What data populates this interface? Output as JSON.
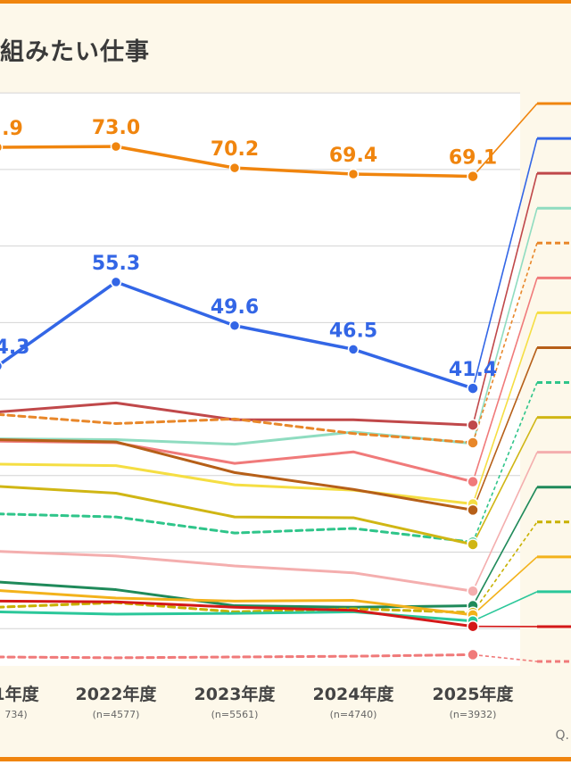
{
  "title": "組みたい仕事",
  "note": "Q.",
  "chart_data": {
    "type": "line",
    "categories": [
      "1年度",
      "2022年度",
      "2023年度",
      "2024年度",
      "2025年度"
    ],
    "sample_sizes": [
      "734)",
      "(n=4577)",
      "(n=5561)",
      "(n=4740)",
      "(n=3932)"
    ],
    "ylim": [
      0,
      85
    ],
    "grid": true,
    "legend": "right",
    "series": [
      {
        "color": "#f0850e",
        "dash": false,
        "values": [
          72.9,
          73.0,
          70.2,
          69.4,
          69.1
        ],
        "labels": [
          ".9",
          "73.0",
          "70.2",
          "69.4",
          "69.1"
        ]
      },
      {
        "color": "#3366e6",
        "dash": false,
        "values": [
          44.3,
          55.3,
          49.6,
          46.5,
          41.4
        ],
        "labels": [
          "4.3",
          "55.3",
          "49.6",
          "46.5",
          "41.4"
        ]
      },
      {
        "color": "#c0484a",
        "dash": false,
        "values": [
          38.3,
          39.5,
          37.3,
          37.3,
          36.6
        ]
      },
      {
        "color": "#8fdcc0",
        "dash": false,
        "values": [
          34.8,
          34.7,
          34.1,
          35.7,
          34.2
        ]
      },
      {
        "color": "#e8872a",
        "dash": true,
        "values": [
          38.0,
          36.8,
          37.4,
          35.5,
          34.3
        ]
      },
      {
        "color": "#f07a7a",
        "dash": false,
        "values": [
          34.5,
          34.3,
          31.6,
          33.1,
          29.2
        ]
      },
      {
        "color": "#f5de43",
        "dash": false,
        "values": [
          31.5,
          31.3,
          28.8,
          28.1,
          26.3
        ]
      },
      {
        "color": "#b65f18",
        "dash": false,
        "values": [
          34.7,
          34.4,
          30.4,
          28.2,
          25.5
        ]
      },
      {
        "color": "#2fc58a",
        "dash": true,
        "values": [
          25.0,
          24.6,
          22.5,
          23.1,
          21.3
        ]
      },
      {
        "color": "#d0b614",
        "dash": false,
        "values": [
          28.6,
          27.7,
          24.6,
          24.5,
          21.0
        ]
      },
      {
        "color": "#f4aeae",
        "dash": false,
        "values": [
          20.1,
          19.5,
          18.2,
          17.3,
          14.9
        ]
      },
      {
        "color": "#1f8a5a",
        "dash": false,
        "values": [
          16.1,
          15.1,
          13.0,
          12.8,
          13.0
        ]
      },
      {
        "color": "#c8b100",
        "dash": true,
        "values": [
          12.8,
          13.4,
          12.2,
          12.6,
          12.1
        ]
      },
      {
        "color": "#f3b21b",
        "dash": false,
        "values": [
          15.0,
          14.0,
          13.6,
          13.7,
          11.8
        ]
      },
      {
        "color": "#2bc79a",
        "dash": false,
        "values": [
          12.2,
          11.9,
          12.0,
          12.2,
          11.0
        ]
      },
      {
        "color": "#d41818",
        "dash": false,
        "values": [
          13.6,
          13.5,
          12.8,
          12.4,
          10.3
        ]
      },
      {
        "color": "#f07a7a",
        "dash": true,
        "values": [
          6.3,
          6.2,
          6.3,
          6.4,
          6.6
        ]
      }
    ]
  }
}
